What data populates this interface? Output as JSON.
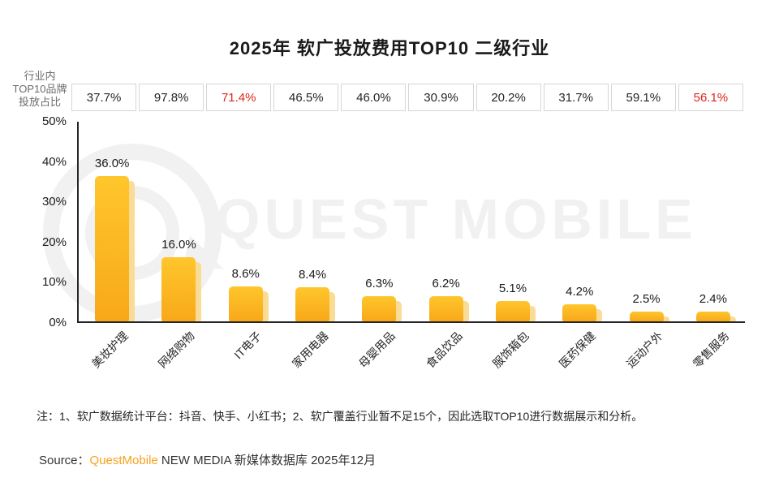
{
  "title": "2025年 软广投放费用TOP10 二级行业",
  "y2_axis_label_lines": [
    "行业内",
    "TOP10品牌",
    "投放占比"
  ],
  "chart_data": {
    "type": "bar",
    "title": "2025年 软广投放费用TOP10 二级行业",
    "categories": [
      "美妆护理",
      "网络购物",
      "IT电子",
      "家用电器",
      "母婴用品",
      "食品饮品",
      "服饰箱包",
      "医药保健",
      "运动户外",
      "零售服务"
    ],
    "values": [
      36.0,
      16.0,
      8.6,
      8.4,
      6.3,
      6.2,
      5.1,
      4.2,
      2.5,
      2.4
    ],
    "value_labels": [
      "36.0%",
      "16.0%",
      "8.6%",
      "8.4%",
      "6.3%",
      "6.2%",
      "5.1%",
      "4.2%",
      "2.5%",
      "2.4%"
    ],
    "top_row_label": "行业内TOP10品牌投放占比",
    "top_row_values": [
      37.7,
      97.8,
      71.4,
      46.5,
      46.0,
      30.9,
      20.2,
      31.7,
      59.1,
      56.1
    ],
    "top_row_labels": [
      "37.7%",
      "97.8%",
      "71.4%",
      "46.5%",
      "46.0%",
      "30.9%",
      "20.2%",
      "31.7%",
      "59.1%",
      "56.1%"
    ],
    "top_row_highlight_indexes": [
      2,
      9
    ],
    "xlabel": "",
    "ylabel": "",
    "ylim": [
      0,
      50
    ],
    "ytick_labels": [
      "0%",
      "10%",
      "20%",
      "30%",
      "40%",
      "50%"
    ],
    "grid": false,
    "legend": "none",
    "bar_color": "#fcb514",
    "bar_shadow_color": "#fbdc97",
    "highlight_red": "#e0251b"
  },
  "watermark": {
    "text": "QUEST MOBILE"
  },
  "note": "注：1、软广数据统计平台：抖音、快手、小红书；2、软广覆盖行业暂不足15个，因此选取TOP10进行数据展示和分析。",
  "source": {
    "prefix": "Source：",
    "brand": "QuestMobile",
    "rest": " NEW MEDIA 新媒体数据库 2025年12月"
  },
  "colors": {
    "accent_gold": "#fcb514",
    "highlight_red": "#e0251b",
    "border_gray": "#d6d6d6",
    "watermark_gray": "#f1f1f1",
    "axis_dark": "#262626"
  }
}
